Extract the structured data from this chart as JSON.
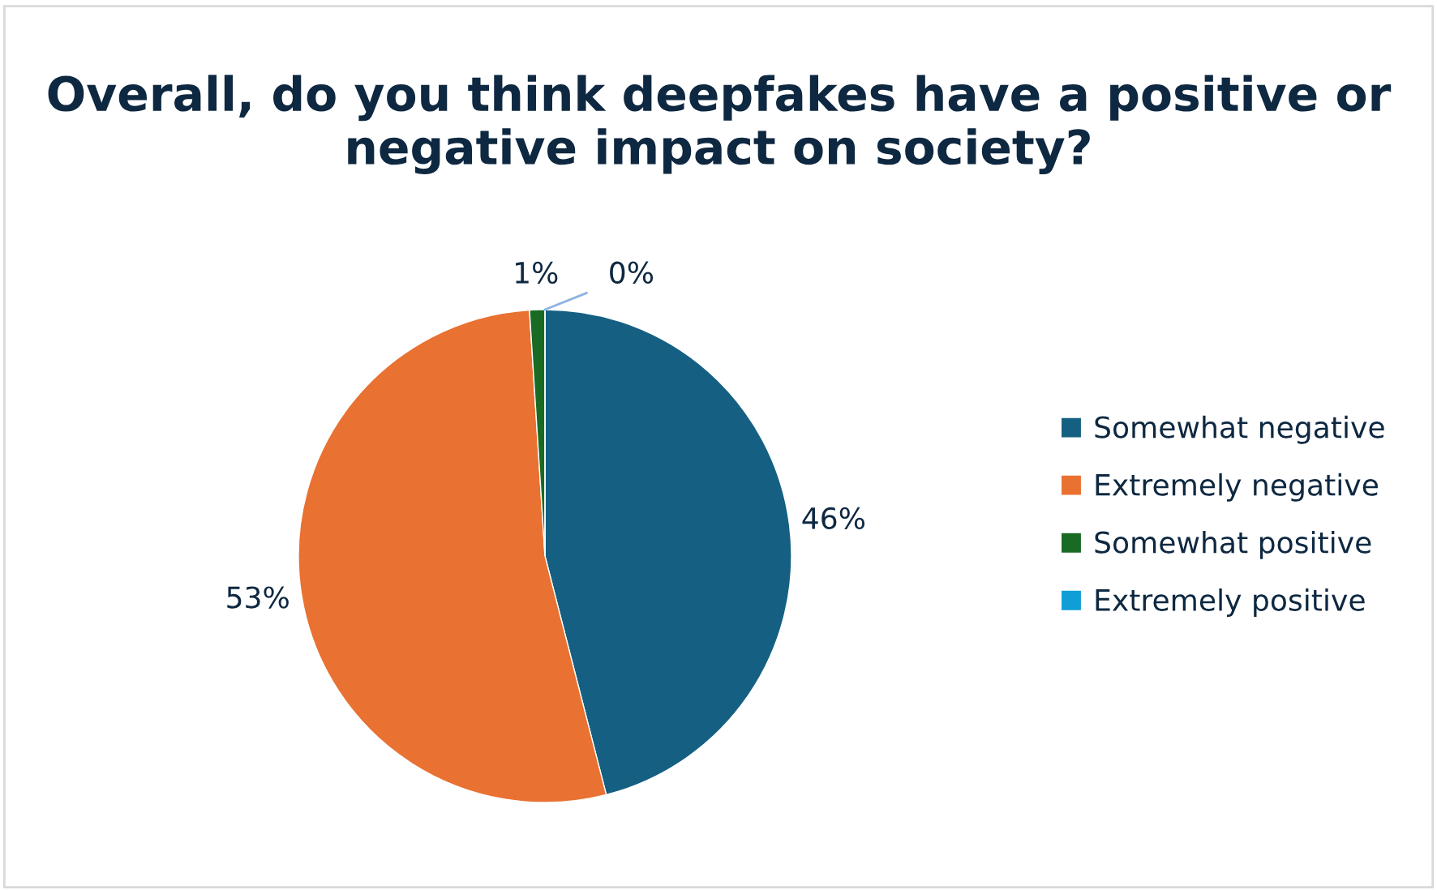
{
  "chart_data": {
    "type": "pie",
    "title": "Overall, do you think deepfakes have a positive or negative impact on society?",
    "categories": [
      "Somewhat negative",
      "Extremely negative",
      "Somewhat positive",
      "Extremely positive"
    ],
    "values": [
      46,
      53,
      1,
      0
    ],
    "colors": [
      "#156082",
      "#e97132",
      "#196b24",
      "#0f9ed5"
    ],
    "value_labels": [
      "46%",
      "53%",
      "1%",
      "0%"
    ],
    "legend": "right"
  }
}
